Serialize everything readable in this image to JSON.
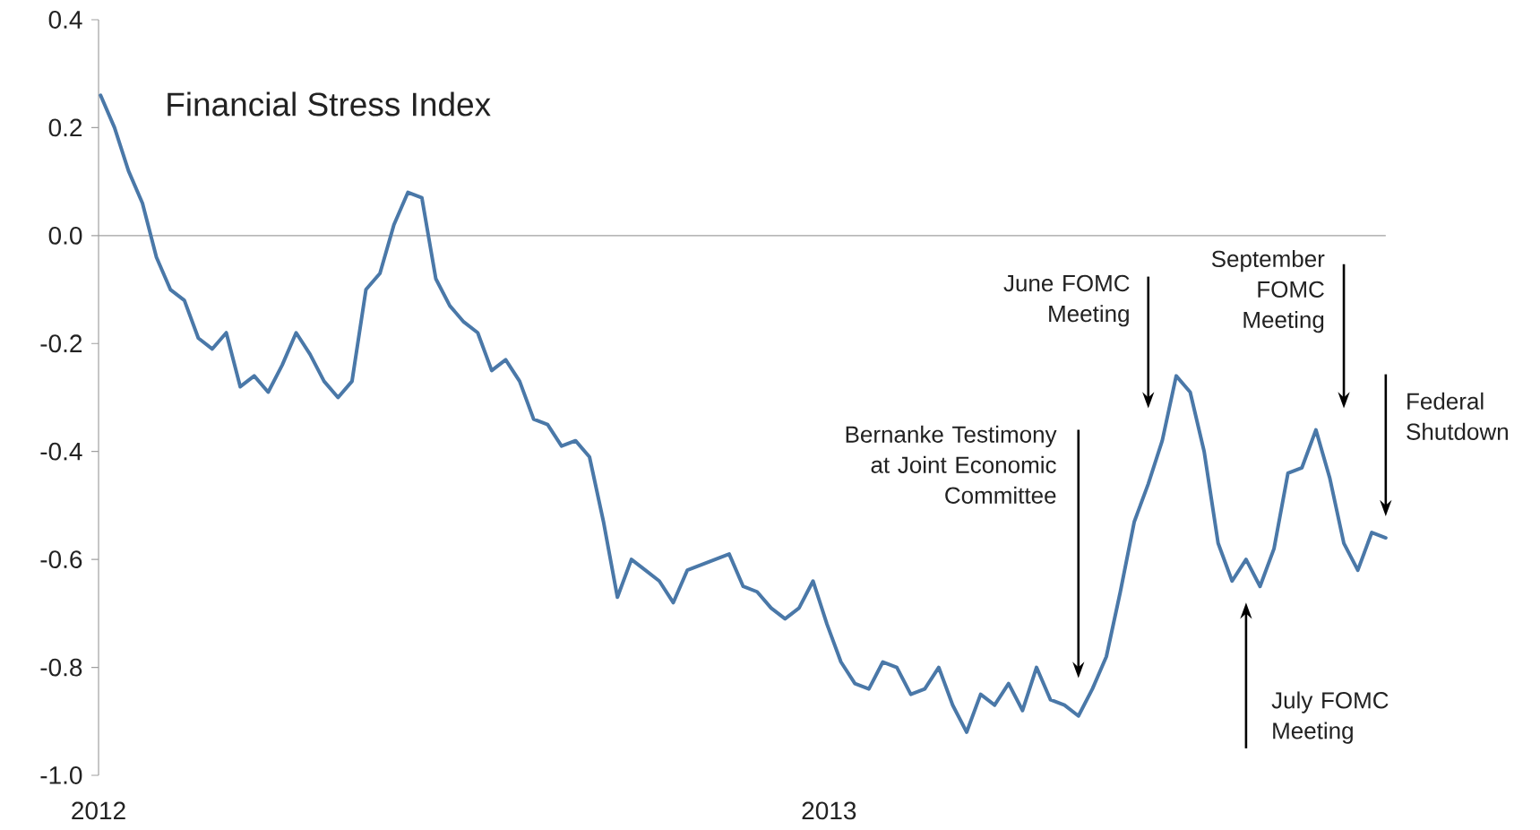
{
  "chart_data": {
    "type": "line",
    "title": "Financial Stress Index",
    "color": "#4a78a8",
    "x": [
      "2012-01-02",
      "2012-01-09",
      "2012-01-16",
      "2012-01-23",
      "2012-01-30",
      "2012-02-06",
      "2012-02-13",
      "2012-02-20",
      "2012-02-27",
      "2012-03-05",
      "2012-03-12",
      "2012-03-19",
      "2012-03-26",
      "2012-04-02",
      "2012-04-09",
      "2012-04-16",
      "2012-04-23",
      "2012-04-30",
      "2012-05-07",
      "2012-05-14",
      "2012-05-21",
      "2012-05-28",
      "2012-06-04",
      "2012-06-11",
      "2012-06-18",
      "2012-06-25",
      "2012-07-02",
      "2012-07-09",
      "2012-07-16",
      "2012-07-23",
      "2012-07-30",
      "2012-08-06",
      "2012-08-13",
      "2012-08-20",
      "2012-08-27",
      "2012-09-03",
      "2012-09-10",
      "2012-09-17",
      "2012-09-24",
      "2012-10-01",
      "2012-10-08",
      "2012-10-15",
      "2012-10-22",
      "2012-10-29",
      "2012-11-05",
      "2012-11-12",
      "2012-11-19",
      "2012-11-26",
      "2012-12-03",
      "2012-12-10",
      "2012-12-17",
      "2012-12-24",
      "2012-12-31",
      "2013-01-07",
      "2013-01-14",
      "2013-01-21",
      "2013-01-28",
      "2013-02-04",
      "2013-02-11",
      "2013-02-18",
      "2013-02-25",
      "2013-03-04",
      "2013-03-11",
      "2013-03-18",
      "2013-03-25",
      "2013-04-01",
      "2013-04-08",
      "2013-04-15",
      "2013-04-22",
      "2013-04-29",
      "2013-05-06",
      "2013-05-13",
      "2013-05-20",
      "2013-05-27",
      "2013-06-03",
      "2013-06-10",
      "2013-06-17",
      "2013-06-24",
      "2013-07-01",
      "2013-07-08",
      "2013-07-15",
      "2013-07-22",
      "2013-07-29",
      "2013-08-05",
      "2013-08-12",
      "2013-08-19",
      "2013-08-26",
      "2013-09-02",
      "2013-09-09",
      "2013-09-16",
      "2013-09-23",
      "2013-09-30",
      "2013-10-07"
    ],
    "values": [
      0.26,
      0.2,
      0.12,
      0.06,
      -0.04,
      -0.1,
      -0.12,
      -0.19,
      -0.21,
      -0.18,
      -0.28,
      -0.26,
      -0.29,
      -0.24,
      -0.18,
      -0.22,
      -0.27,
      -0.3,
      -0.27,
      -0.1,
      -0.07,
      0.02,
      0.08,
      0.07,
      -0.08,
      -0.13,
      -0.16,
      -0.18,
      -0.25,
      -0.23,
      -0.27,
      -0.34,
      -0.35,
      -0.39,
      -0.38,
      -0.41,
      -0.53,
      -0.67,
      -0.6,
      -0.62,
      -0.64,
      -0.68,
      -0.62,
      -0.61,
      -0.6,
      -0.59,
      -0.65,
      -0.66,
      -0.69,
      -0.71,
      -0.69,
      -0.64,
      -0.72,
      -0.79,
      -0.83,
      -0.84,
      -0.79,
      -0.8,
      -0.85,
      -0.84,
      -0.8,
      -0.87,
      -0.92,
      -0.85,
      -0.87,
      -0.83,
      -0.88,
      -0.8,
      -0.86,
      -0.87,
      -0.89,
      -0.84,
      -0.78,
      -0.66,
      -0.53,
      -0.46,
      -0.38,
      -0.26,
      -0.29,
      -0.4,
      -0.57,
      -0.64,
      -0.6,
      -0.65,
      -0.58,
      -0.44,
      -0.43,
      -0.36,
      -0.45,
      -0.57,
      -0.62,
      -0.55,
      -0.56
    ],
    "xlim": [
      "2012-01-01",
      "2013-10-08"
    ],
    "xticks": [
      "2012",
      "2013"
    ],
    "ylim": [
      -1.0,
      0.4
    ],
    "yticks": [
      0.4,
      0.2,
      {
        "value": 0,
        "label": "0.0"
      },
      -0.2,
      -0.4,
      -0.6,
      -0.8,
      {
        "value": -1.0,
        "label": "-1.0"
      }
    ],
    "annotations": [
      "Bernanke Testimony at Joint Economic Committee",
      "June FOMC Meeting",
      "July FOMC Meeting",
      "September FOMC Meeting",
      "Federal Shutdown"
    ]
  }
}
